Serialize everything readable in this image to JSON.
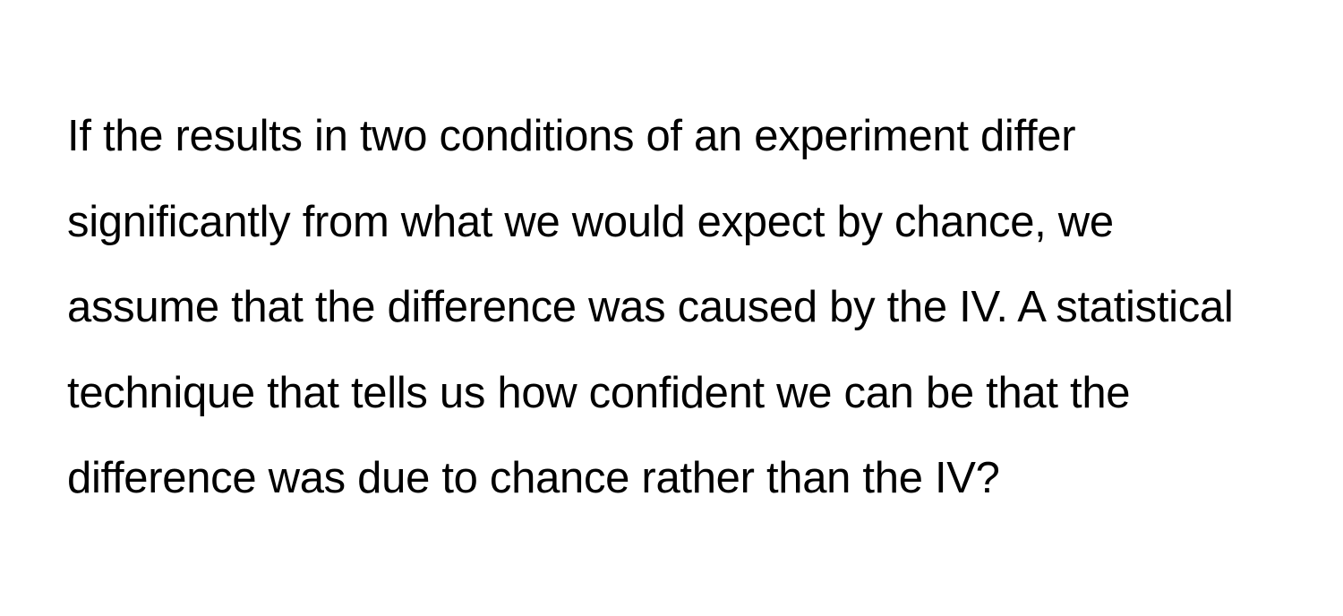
{
  "question": {
    "text": "If the results in two conditions of an experiment differ significantly from what we would expect by chance, we assume that the difference was caused by the IV. A statistical technique that tells us how confident we can be that the difference was due to chance rather than the IV?",
    "font_size": 49,
    "line_height": 1.95,
    "text_color": "#000000",
    "background_color": "#ffffff",
    "font_weight": 400
  }
}
